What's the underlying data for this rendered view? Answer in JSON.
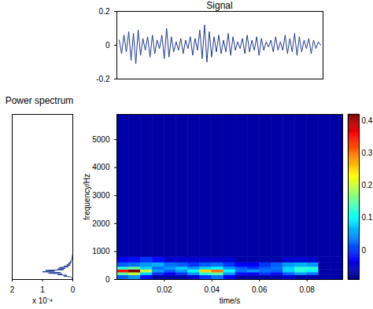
{
  "chart_data": [
    {
      "type": "line",
      "title": "Signal",
      "color": "#1f3a93",
      "tick_labels": "y",
      "x": [
        0.001,
        0.002,
        0.003,
        0.004,
        0.005,
        0.006,
        0.007,
        0.008,
        0.009,
        0.01,
        0.011,
        0.012,
        0.013,
        0.014,
        0.015,
        0.016,
        0.017,
        0.018,
        0.019,
        0.02,
        0.021,
        0.022,
        0.023,
        0.024,
        0.025,
        0.026,
        0.027,
        0.028,
        0.029,
        0.03,
        0.031,
        0.032,
        0.033,
        0.034,
        0.035,
        0.036,
        0.037,
        0.038,
        0.039,
        0.04,
        0.041,
        0.042,
        0.043,
        0.044,
        0.045,
        0.046,
        0.047,
        0.048,
        0.049,
        0.05,
        0.051,
        0.052,
        0.053,
        0.054,
        0.055,
        0.056,
        0.057,
        0.058,
        0.059,
        0.06,
        0.061,
        0.062,
        0.063,
        0.064,
        0.065,
        0.066,
        0.067,
        0.068,
        0.069,
        0.07,
        0.071,
        0.072,
        0.073,
        0.074,
        0.075,
        0.076,
        0.077,
        0.078,
        0.079,
        0.08,
        0.081,
        0.082,
        0.083,
        0.084,
        0.085,
        0.086
      ],
      "values": [
        0.03,
        -0.05,
        0.06,
        -0.04,
        0.08,
        -0.09,
        0.07,
        -0.11,
        0.09,
        -0.06,
        0.04,
        -0.03,
        0.05,
        -0.07,
        0.06,
        -0.05,
        0.03,
        -0.02,
        0.06,
        -0.08,
        0.1,
        -0.07,
        0.05,
        -0.04,
        0.02,
        -0.03,
        0.04,
        -0.05,
        0.03,
        -0.02,
        0.05,
        -0.06,
        0.04,
        -0.03,
        0.09,
        -0.08,
        0.12,
        -0.1,
        0.08,
        -0.07,
        0.05,
        -0.04,
        0.06,
        -0.05,
        0.03,
        -0.04,
        0.07,
        -0.06,
        0.05,
        -0.03,
        0.02,
        -0.02,
        0.04,
        -0.05,
        0.06,
        -0.04,
        0.03,
        -0.03,
        0.05,
        -0.06,
        0.04,
        -0.03,
        0.02,
        -0.01,
        0.03,
        -0.04,
        0.05,
        -0.03,
        0.02,
        -0.03,
        0.06,
        -0.05,
        0.04,
        -0.04,
        0.07,
        -0.06,
        0.05,
        -0.04,
        0.03,
        -0.02,
        0.04,
        -0.05,
        0.03,
        -0.02,
        0.02,
        0.0
      ],
      "xlim": [
        0,
        0.087
      ],
      "ylim": [
        -0.2,
        0.2
      ],
      "yticks": [
        -0.2,
        0,
        0.2
      ]
    },
    {
      "type": "line",
      "orientation": "horizontal",
      "title": "Power spectrum",
      "x_label": "x 10⁻⁴",
      "color": "#1f3a93",
      "tick_labels": "x",
      "frequency": [
        50,
        75,
        100,
        125,
        150,
        175,
        200,
        225,
        250,
        275,
        300,
        325,
        350,
        375,
        400,
        425,
        450,
        475,
        500,
        525,
        550,
        575,
        600,
        625,
        650,
        675,
        700,
        725,
        750,
        775,
        800,
        825,
        850,
        875,
        900
      ],
      "values": [
        0.02,
        0.05,
        0.1,
        0.3,
        0.2,
        0.5,
        0.35,
        0.8,
        0.4,
        1.0,
        0.6,
        0.9,
        0.3,
        0.5,
        0.25,
        0.45,
        0.15,
        0.3,
        0.1,
        0.2,
        0.08,
        0.15,
        0.05,
        0.1,
        0.04,
        0.06,
        0.03,
        0.05,
        0.02,
        0.03,
        0.01,
        0.02,
        0.01,
        0.005,
        0.002
      ],
      "xlim": [
        2,
        0
      ],
      "xticks": [
        2,
        1,
        0
      ],
      "ylim": [
        0,
        5900
      ]
    },
    {
      "type": "heatmap",
      "x_label": "time/s",
      "y_label": "frequency/Hz",
      "time_edges": [
        0,
        0.005,
        0.01,
        0.015,
        0.02,
        0.025,
        0.03,
        0.035,
        0.04,
        0.045,
        0.05,
        0.055,
        0.06,
        0.065,
        0.07,
        0.075,
        0.08,
        0.085,
        0.09,
        0.095
      ],
      "freq_edges": [
        0,
        150,
        250,
        350,
        450,
        600,
        800,
        5900
      ],
      "cells": [
        [
          0.02,
          0.05,
          -0.02,
          -0.07,
          -0.07,
          -0.07,
          -0.05,
          0.0,
          0.03,
          -0.03,
          -0.07,
          -0.07,
          -0.07,
          -0.07,
          -0.05,
          -0.07,
          -0.07,
          -0.07,
          -0.07
        ],
        [
          0.15,
          0.2,
          0.08,
          0.0,
          -0.03,
          0.0,
          0.05,
          0.12,
          0.15,
          0.05,
          -0.02,
          -0.03,
          0.0,
          -0.02,
          0.02,
          0.05,
          0.03,
          -0.07,
          -0.07
        ],
        [
          0.35,
          0.42,
          0.2,
          0.05,
          0.02,
          0.05,
          0.1,
          0.25,
          0.3,
          0.1,
          0.03,
          0.05,
          0.03,
          0.02,
          0.08,
          0.12,
          0.1,
          -0.07,
          -0.07
        ],
        [
          0.12,
          0.15,
          0.08,
          0.03,
          0.05,
          0.08,
          0.05,
          0.08,
          0.1,
          0.05,
          0.02,
          0.0,
          0.02,
          0.03,
          0.08,
          0.12,
          0.12,
          -0.07,
          -0.07
        ],
        [
          0.02,
          0.03,
          0.05,
          0.06,
          0.03,
          0.02,
          0.0,
          0.02,
          0.03,
          0.0,
          -0.03,
          -0.03,
          0.0,
          0.02,
          0.05,
          0.06,
          0.05,
          -0.07,
          -0.07
        ],
        [
          -0.03,
          -0.02,
          0.0,
          -0.02,
          -0.05,
          -0.05,
          -0.05,
          -0.05,
          -0.05,
          -0.05,
          -0.07,
          -0.07,
          -0.07,
          -0.07,
          -0.05,
          -0.05,
          -0.05,
          -0.07,
          -0.07
        ],
        [
          -0.07,
          -0.07,
          -0.07,
          -0.07,
          -0.07,
          -0.07,
          -0.07,
          -0.07,
          -0.07,
          -0.07,
          -0.07,
          -0.07,
          -0.07,
          -0.07,
          -0.07,
          -0.07,
          -0.07,
          -0.07,
          -0.07
        ]
      ],
      "xlim": [
        0,
        0.095
      ],
      "xticks": [
        0.02,
        0.04,
        0.06,
        0.08
      ],
      "ylim": [
        0,
        5900
      ],
      "yticks": [
        0,
        1000,
        2000,
        3000,
        4000,
        5000
      ],
      "colorbar_lim": [
        -0.09,
        0.42
      ],
      "colorbar_ticks": [
        0,
        0.1,
        0.2,
        0.3,
        0.4
      ]
    }
  ]
}
